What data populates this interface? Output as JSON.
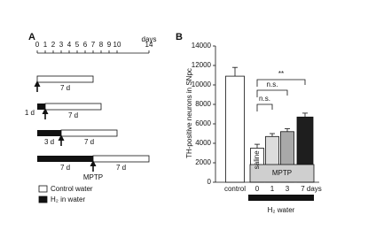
{
  "timeline": {
    "label": "A",
    "axis_label": "days",
    "xlim": [
      0,
      14
    ],
    "xticks": [
      0,
      1,
      2,
      3,
      4,
      5,
      6,
      7,
      8,
      9,
      10,
      14
    ],
    "rows": [
      {
        "water_days": [
          0,
          7
        ],
        "water_label": "7 d",
        "mptp_day": 0
      },
      {
        "h2_days": [
          0,
          1
        ],
        "h2_label": "1 d",
        "water_days": [
          1,
          8
        ],
        "water_label": "7 d",
        "mptp_day": 1
      },
      {
        "h2_days": [
          0,
          3
        ],
        "h2_label": "3 d",
        "water_days": [
          3,
          10
        ],
        "water_label": "7 d",
        "mptp_day": 3
      },
      {
        "h2_days": [
          0,
          7
        ],
        "h2_label": "7 d",
        "water_days": [
          7,
          14
        ],
        "water_label": "7 d",
        "mptp_day": 7
      }
    ],
    "mptp_label": "MPTP",
    "legend": [
      "Control water",
      "H₂ in water"
    ]
  },
  "chart_data": {
    "type": "bar",
    "label": "B",
    "y_label": "TH-positive neurons in SNpc",
    "categories": [
      "control",
      "0",
      "1",
      "3",
      "7 days"
    ],
    "values": [
      10900,
      3500,
      4700,
      5200,
      6700
    ],
    "errors": [
      900,
      400,
      300,
      300,
      400
    ],
    "colors": [
      "#ffffff",
      "#ffffff",
      "#dcdcdc",
      "#a9a9a9",
      "#1e1e1e"
    ],
    "ylim": [
      0,
      14000
    ],
    "yticks": [
      0,
      2000,
      4000,
      6000,
      8000,
      10000,
      12000,
      14000
    ],
    "annotations": {
      "saline": "saline",
      "mptp": "MPTP",
      "ns1": "n.s.",
      "ns2": "n.s.",
      "sig": "**",
      "h2": "H₂ water"
    }
  }
}
